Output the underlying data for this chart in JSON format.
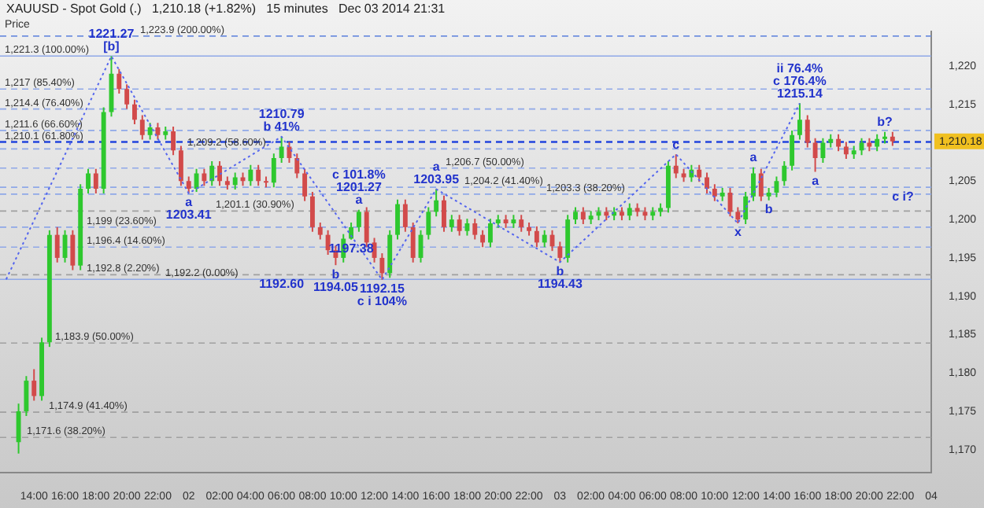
{
  "chart_data": {
    "type": "candlestick",
    "title": "XAUUSD - Spot Gold (.)   1,210.18 (+1.82%)   15 minutes   Dec 03 2014 21:31",
    "ylabel": "Price",
    "x": [
      "2014-12-01T13:00",
      "2014-12-01T13:30",
      "2014-12-01T14:00",
      "2014-12-01T14:30",
      "2014-12-01T15:00",
      "2014-12-01T15:30",
      "2014-12-01T16:00",
      "2014-12-01T16:30",
      "2014-12-01T17:00",
      "2014-12-01T17:30",
      "2014-12-01T18:00",
      "2014-12-01T18:30",
      "2014-12-01T19:00",
      "2014-12-01T19:30",
      "2014-12-01T20:00",
      "2014-12-01T20:30",
      "2014-12-01T21:00",
      "2014-12-01T21:30",
      "2014-12-01T22:00",
      "2014-12-01T22:30",
      "2014-12-01T23:00",
      "2014-12-01T23:30",
      "2014-12-02T00:00",
      "2014-12-02T00:30",
      "2014-12-02T01:00",
      "2014-12-02T01:30",
      "2014-12-02T02:00",
      "2014-12-02T02:30",
      "2014-12-02T03:00",
      "2014-12-02T03:30",
      "2014-12-02T04:00",
      "2014-12-02T04:30",
      "2014-12-02T05:00",
      "2014-12-02T05:30",
      "2014-12-02T06:00",
      "2014-12-02T06:30",
      "2014-12-02T07:00",
      "2014-12-02T07:30",
      "2014-12-02T08:00",
      "2014-12-02T08:30",
      "2014-12-02T09:00",
      "2014-12-02T09:30",
      "2014-12-02T10:00",
      "2014-12-02T10:30",
      "2014-12-02T11:00",
      "2014-12-02T11:30",
      "2014-12-02T12:00",
      "2014-12-02T12:30",
      "2014-12-02T13:00",
      "2014-12-02T13:30",
      "2014-12-02T14:00",
      "2014-12-02T14:30",
      "2014-12-02T15:00",
      "2014-12-02T15:30",
      "2014-12-02T16:00",
      "2014-12-02T16:30",
      "2014-12-02T17:00",
      "2014-12-02T17:30",
      "2014-12-02T18:00",
      "2014-12-02T18:30",
      "2014-12-02T19:00",
      "2014-12-02T19:30",
      "2014-12-02T20:00",
      "2014-12-02T20:30",
      "2014-12-02T21:00",
      "2014-12-02T21:30",
      "2014-12-02T22:00",
      "2014-12-02T22:30",
      "2014-12-02T23:00",
      "2014-12-02T23:30",
      "2014-12-03T00:00",
      "2014-12-03T00:30",
      "2014-12-03T01:00",
      "2014-12-03T01:30",
      "2014-12-03T02:00",
      "2014-12-03T02:30",
      "2014-12-03T03:00",
      "2014-12-03T03:30",
      "2014-12-03T04:00",
      "2014-12-03T04:30",
      "2014-12-03T05:00",
      "2014-12-03T05:30",
      "2014-12-03T06:00",
      "2014-12-03T06:30",
      "2014-12-03T07:00",
      "2014-12-03T07:30",
      "2014-12-03T08:00",
      "2014-12-03T08:30",
      "2014-12-03T09:00",
      "2014-12-03T09:30",
      "2014-12-03T10:00",
      "2014-12-03T10:30",
      "2014-12-03T11:00",
      "2014-12-03T11:30",
      "2014-12-03T12:00",
      "2014-12-03T12:30",
      "2014-12-03T13:00",
      "2014-12-03T13:30",
      "2014-12-03T14:00",
      "2014-12-03T14:30",
      "2014-12-03T15:00",
      "2014-12-03T15:30",
      "2014-12-03T16:00",
      "2014-12-03T16:30",
      "2014-12-03T17:00",
      "2014-12-03T17:30",
      "2014-12-03T18:00",
      "2014-12-03T18:30",
      "2014-12-03T19:00",
      "2014-12-03T19:30",
      "2014-12-03T20:00",
      "2014-12-03T20:30",
      "2014-12-03T21:00",
      "2014-12-03T21:30"
    ],
    "ohlc": [
      [
        1171,
        1176,
        1169.5,
        1175
      ],
      [
        1175,
        1179.6,
        1174.4,
        1179
      ],
      [
        1179,
        1180.5,
        1176.4,
        1177
      ],
      [
        1177,
        1184.6,
        1176.4,
        1184
      ],
      [
        1184,
        1198.6,
        1183.4,
        1198
      ],
      [
        1198,
        1199,
        1194.4,
        1195
      ],
      [
        1195,
        1198.6,
        1194.4,
        1198
      ],
      [
        1198,
        1198.6,
        1193.4,
        1194
      ],
      [
        1194,
        1204.6,
        1193.4,
        1204
      ],
      [
        1204,
        1206.6,
        1203.4,
        1206
      ],
      [
        1206,
        1206.6,
        1203.4,
        1204
      ],
      [
        1204,
        1214.6,
        1203.4,
        1214
      ],
      [
        1214,
        1221.27,
        1213.4,
        1219
      ],
      [
        1219,
        1219.6,
        1216.4,
        1217
      ],
      [
        1217,
        1217.6,
        1214.4,
        1215
      ],
      [
        1215,
        1215.6,
        1212.4,
        1213
      ],
      [
        1213,
        1213.6,
        1210.4,
        1211
      ],
      [
        1211,
        1212.6,
        1210.4,
        1212
      ],
      [
        1212,
        1212.6,
        1210.4,
        1211
      ],
      [
        1211,
        1212.1,
        1210.4,
        1211.5
      ],
      [
        1211.5,
        1212.1,
        1208.4,
        1209
      ],
      [
        1209,
        1209.6,
        1204.4,
        1205
      ],
      [
        1205,
        1205.6,
        1203.41,
        1204
      ],
      [
        1204,
        1206.6,
        1203.6,
        1206
      ],
      [
        1206,
        1206.6,
        1204.4,
        1205
      ],
      [
        1205,
        1207.6,
        1204.4,
        1207
      ],
      [
        1207,
        1207.6,
        1204.4,
        1205
      ],
      [
        1205,
        1205.6,
        1203.9,
        1204.5
      ],
      [
        1204.5,
        1206.1,
        1203.9,
        1205.5
      ],
      [
        1205.5,
        1206.1,
        1204.4,
        1205
      ],
      [
        1205,
        1207.1,
        1204.4,
        1206.5
      ],
      [
        1206.5,
        1207.1,
        1204.4,
        1205
      ],
      [
        1205,
        1205.6,
        1204.2,
        1204.8
      ],
      [
        1204.8,
        1208.6,
        1204.2,
        1208
      ],
      [
        1208,
        1210.79,
        1207.4,
        1209.5
      ],
      [
        1209.5,
        1210.1,
        1207.4,
        1208
      ],
      [
        1208,
        1208.6,
        1205.4,
        1206
      ],
      [
        1206,
        1206.6,
        1202.4,
        1203
      ],
      [
        1203,
        1203.6,
        1198.4,
        1199
      ],
      [
        1199,
        1199.6,
        1197.4,
        1198
      ],
      [
        1198,
        1198.6,
        1195.4,
        1196
      ],
      [
        1196,
        1196.6,
        1194.05,
        1195
      ],
      [
        1195,
        1198.1,
        1194.4,
        1197.5
      ],
      [
        1197.5,
        1199.6,
        1197.38,
        1199
      ],
      [
        1199,
        1201.27,
        1198.4,
        1201
      ],
      [
        1201,
        1201.6,
        1196.4,
        1197
      ],
      [
        1197,
        1197.6,
        1194.4,
        1195
      ],
      [
        1195,
        1195.6,
        1192.15,
        1193
      ],
      [
        1193,
        1198.6,
        1192.4,
        1198
      ],
      [
        1198,
        1202.6,
        1197.4,
        1202
      ],
      [
        1202,
        1202.6,
        1198.4,
        1199
      ],
      [
        1199,
        1199.6,
        1194.4,
        1195
      ],
      [
        1195,
        1198.6,
        1194.4,
        1198
      ],
      [
        1198,
        1201.6,
        1197.4,
        1201
      ],
      [
        1201,
        1203.95,
        1200.4,
        1202.5
      ],
      [
        1202.5,
        1203.1,
        1198.4,
        1199
      ],
      [
        1199,
        1200.6,
        1198.4,
        1200
      ],
      [
        1200,
        1200.6,
        1197.9,
        1198.5
      ],
      [
        1198.5,
        1200.1,
        1197.9,
        1199.5
      ],
      [
        1199.5,
        1200.1,
        1197.4,
        1198
      ],
      [
        1198,
        1198.6,
        1196.4,
        1197
      ],
      [
        1197,
        1200.1,
        1196.4,
        1199.5
      ],
      [
        1199.5,
        1200.6,
        1198.9,
        1200
      ],
      [
        1200,
        1200.6,
        1198.9,
        1199.5
      ],
      [
        1199.5,
        1200.6,
        1198.9,
        1200
      ],
      [
        1200,
        1200.6,
        1198.4,
        1199
      ],
      [
        1199,
        1199.6,
        1197.9,
        1198.5
      ],
      [
        1198.5,
        1199.1,
        1196.4,
        1197
      ],
      [
        1197,
        1198.6,
        1196.4,
        1198
      ],
      [
        1198,
        1198.6,
        1195.9,
        1196.5
      ],
      [
        1196.5,
        1197.1,
        1194.43,
        1195
      ],
      [
        1195,
        1200.6,
        1194.4,
        1200
      ],
      [
        1200,
        1201.6,
        1199.4,
        1201
      ],
      [
        1201,
        1201.6,
        1199.4,
        1200
      ],
      [
        1200,
        1201.1,
        1199.4,
        1200.5
      ],
      [
        1200.5,
        1201.6,
        1199.9,
        1201
      ],
      [
        1201,
        1201.6,
        1199.9,
        1200.5
      ],
      [
        1200.5,
        1201.6,
        1199.9,
        1201
      ],
      [
        1201,
        1201.6,
        1199.9,
        1200.5
      ],
      [
        1200.5,
        1202.1,
        1199.9,
        1201.5
      ],
      [
        1201.5,
        1202.1,
        1200.4,
        1201
      ],
      [
        1201,
        1201.6,
        1199.9,
        1200.5
      ],
      [
        1200.5,
        1201.6,
        1199.9,
        1201
      ],
      [
        1201,
        1202.1,
        1200.4,
        1201.5
      ],
      [
        1201.5,
        1207.6,
        1200.9,
        1207
      ],
      [
        1207,
        1208.5,
        1205.4,
        1206
      ],
      [
        1206,
        1206.6,
        1204.9,
        1205.5
      ],
      [
        1205.5,
        1207.1,
        1204.9,
        1206.5
      ],
      [
        1206.5,
        1207.1,
        1204.9,
        1205.5
      ],
      [
        1205.5,
        1206.1,
        1203.4,
        1204
      ],
      [
        1204,
        1204.6,
        1202.4,
        1203
      ],
      [
        1203,
        1204.1,
        1202.4,
        1203.5
      ],
      [
        1203.5,
        1204.1,
        1200.4,
        1201
      ],
      [
        1201,
        1201.6,
        1199.5,
        1200
      ],
      [
        1200,
        1203.6,
        1199.4,
        1203
      ],
      [
        1203,
        1206.8,
        1202.4,
        1206
      ],
      [
        1206,
        1206.6,
        1202.4,
        1203
      ],
      [
        1203,
        1204.1,
        1202.5,
        1203.5
      ],
      [
        1203.5,
        1205.6,
        1202.9,
        1205
      ],
      [
        1205,
        1207.6,
        1204.4,
        1207
      ],
      [
        1207,
        1211.6,
        1206.4,
        1211
      ],
      [
        1211,
        1215.14,
        1210.4,
        1213
      ],
      [
        1213,
        1213.6,
        1209.4,
        1210
      ],
      [
        1210,
        1210.6,
        1206.2,
        1208
      ],
      [
        1208,
        1210.6,
        1207.4,
        1210
      ],
      [
        1210,
        1211.1,
        1209.4,
        1210.5
      ],
      [
        1210.5,
        1211.1,
        1208.9,
        1209.5
      ],
      [
        1209.5,
        1210.1,
        1207.9,
        1208.5
      ],
      [
        1208.5,
        1209.6,
        1207.9,
        1209
      ],
      [
        1209,
        1210.6,
        1208.4,
        1210
      ],
      [
        1210,
        1210.6,
        1208.9,
        1209.5
      ],
      [
        1209.5,
        1211.1,
        1208.9,
        1210.5
      ],
      [
        1210.5,
        1211.4,
        1209.9,
        1210.8
      ],
      [
        1210.8,
        1211.4,
        1209.6,
        1210.18
      ]
    ],
    "series": [
      {
        "type": "line",
        "color": "#5566ee",
        "line_style": "dotted",
        "marker": "none",
        "x": [
          "2014-12-01T12:12",
          "2014-12-01T19:00",
          "2014-12-02T00:00",
          "2014-12-02T06:00",
          "2014-12-02T12:30",
          "2014-12-02T16:00",
          "2014-12-03T00:00",
          "2014-12-03T07:30",
          "2014-12-03T11:30",
          "2014-12-03T15:30"
        ],
        "values": [
          1192.2,
          1221.27,
          1203.41,
          1210.79,
          1192.15,
          1203.95,
          1194.43,
          1208.5,
          1199.5,
          1215.14
        ]
      }
    ],
    "xlim": [
      "2014-12-01T11:48",
      "2014-12-04T00:00"
    ],
    "ylim": [
      1167,
      1224.5
    ],
    "xticks": [
      {
        "value": "2014-12-01T14:00",
        "label": "14:00"
      },
      {
        "value": "2014-12-01T16:00",
        "label": "16:00"
      },
      {
        "value": "2014-12-01T18:00",
        "label": "18:00"
      },
      {
        "value": "2014-12-01T20:00",
        "label": "20:00"
      },
      {
        "value": "2014-12-01T22:00",
        "label": "22:00"
      },
      {
        "value": "2014-12-02T00:00",
        "label": "02"
      },
      {
        "value": "2014-12-02T02:00",
        "label": "02:00"
      },
      {
        "value": "2014-12-02T04:00",
        "label": "04:00"
      },
      {
        "value": "2014-12-02T06:00",
        "label": "06:00"
      },
      {
        "value": "2014-12-02T08:00",
        "label": "08:00"
      },
      {
        "value": "2014-12-02T10:00",
        "label": "10:00"
      },
      {
        "value": "2014-12-02T12:00",
        "label": "12:00"
      },
      {
        "value": "2014-12-02T14:00",
        "label": "14:00"
      },
      {
        "value": "2014-12-02T16:00",
        "label": "16:00"
      },
      {
        "value": "2014-12-02T18:00",
        "label": "18:00"
      },
      {
        "value": "2014-12-02T20:00",
        "label": "20:00"
      },
      {
        "value": "2014-12-02T22:00",
        "label": "22:00"
      },
      {
        "value": "2014-12-03T00:00",
        "label": "03"
      },
      {
        "value": "2014-12-03T02:00",
        "label": "02:00"
      },
      {
        "value": "2014-12-03T04:00",
        "label": "04:00"
      },
      {
        "value": "2014-12-03T06:00",
        "label": "06:00"
      },
      {
        "value": "2014-12-03T08:00",
        "label": "08:00"
      },
      {
        "value": "2014-12-03T10:00",
        "label": "10:00"
      },
      {
        "value": "2014-12-03T12:00",
        "label": "12:00"
      },
      {
        "value": "2014-12-03T14:00",
        "label": "14:00"
      },
      {
        "value": "2014-12-03T16:00",
        "label": "16:00"
      },
      {
        "value": "2014-12-03T18:00",
        "label": "18:00"
      },
      {
        "value": "2014-12-03T20:00",
        "label": "20:00"
      },
      {
        "value": "2014-12-03T22:00",
        "label": "22:00"
      },
      {
        "value": "2014-12-04T00:00",
        "label": "04"
      }
    ],
    "yticks": [
      {
        "value": 1170,
        "label": "1,170"
      },
      {
        "value": 1175,
        "label": "1,175"
      },
      {
        "value": 1180,
        "label": "1,180"
      },
      {
        "value": 1185,
        "label": "1,185"
      },
      {
        "value": 1190,
        "label": "1,190"
      },
      {
        "value": 1195,
        "label": "1,195"
      },
      {
        "value": 1200,
        "label": "1,200"
      },
      {
        "value": 1205,
        "label": "1,205"
      },
      {
        "value": 1210,
        "label": null
      },
      {
        "value": 1215,
        "label": "1,215"
      },
      {
        "value": 1220,
        "label": "1,220"
      }
    ],
    "ref_lines": [
      {
        "axis": "y",
        "value": 1223.9,
        "label": "1,223.9 (200.00%)",
        "color": "#6f8fe0",
        "line_style": "dashed"
      },
      {
        "axis": "y",
        "value": 1221.3,
        "label": "1,221.3 (100.00%)",
        "color": "#8fa8e8",
        "line_style": "solid"
      },
      {
        "axis": "y",
        "value": 1217,
        "label": "1,217 (85.40%)",
        "color": "#8fa8e8",
        "line_style": "dashed"
      },
      {
        "axis": "y",
        "value": 1214.4,
        "label": "1,214.4 (76.40%)",
        "color": "#8fa8e8",
        "line_style": "dashed"
      },
      {
        "axis": "y",
        "value": 1211.6,
        "label": "1,211.6 (66.60%)",
        "color": "#8fa8e8",
        "line_style": "dashed"
      },
      {
        "axis": "y",
        "value": 1210.1,
        "label": "1,210.1 (61.80%)",
        "color": "#2244dd",
        "line_style": "dashed"
      },
      {
        "axis": "y",
        "value": 1209.2,
        "label": "1,209.2 (58.60%)",
        "color": "#8fa8e8",
        "line_style": "dashed"
      },
      {
        "axis": "y",
        "value": 1206.7,
        "label": "1,206.7 (50.00%)",
        "color": "#8fa8e8",
        "line_style": "dashed"
      },
      {
        "axis": "y",
        "value": 1204.2,
        "label": "1,204.2 (41.40%)",
        "color": "#8fa8e8",
        "line_style": "dashed"
      },
      {
        "axis": "y",
        "value": 1203.3,
        "label": "1,203.3 (38.20%)",
        "color": "#8fa8e8",
        "line_style": "dashed"
      },
      {
        "axis": "y",
        "value": 1201.1,
        "label": "1,201.1 (30.90%)",
        "color": "#a0a0a0",
        "line_style": "dashed"
      },
      {
        "axis": "y",
        "value": 1199,
        "label": "1,199 (23.60%)",
        "color": "#8fa8e8",
        "line_style": "dashed"
      },
      {
        "axis": "y",
        "value": 1196.4,
        "label": "1,196.4 (14.60%)",
        "color": "#8fa8e8",
        "line_style": "dashed"
      },
      {
        "axis": "y",
        "value": 1192.8,
        "label": "1,192.8 (2.20%)",
        "color": "#a0a0a0",
        "line_style": "dashed"
      },
      {
        "axis": "y",
        "value": 1192.2,
        "label": "1,192.2 (0.00%)",
        "color": "#8fa8e8",
        "line_style": "solid"
      },
      {
        "axis": "y",
        "value": 1183.9,
        "label": "1,183.9 (50.00%)",
        "color": "#a0a0a0",
        "line_style": "dashed"
      },
      {
        "axis": "y",
        "value": 1174.9,
        "label": "1,174.9 (41.40%)",
        "color": "#a0a0a0",
        "line_style": "dashed"
      },
      {
        "axis": "y",
        "value": 1171.6,
        "label": "1,171.6 (38.20%)",
        "color": "#a0a0a0",
        "line_style": "dashed"
      }
    ],
    "annotations": [
      {
        "text": "[b]",
        "x": "2014-12-01T19:00",
        "y": 1221.27
      },
      {
        "text": "1221.27",
        "x": "2014-12-01T19:00",
        "y": 1221.27
      },
      {
        "text": "a",
        "x": "2014-12-02T00:00",
        "y": 1203.41
      },
      {
        "text": "1203.41",
        "x": "2014-12-02T00:00",
        "y": 1203.41
      },
      {
        "text": "b 41%",
        "x": "2014-12-02T06:00",
        "y": 1210.79
      },
      {
        "text": "1210.79",
        "x": "2014-12-02T06:00",
        "y": 1210.79
      },
      {
        "text": "1192.60",
        "x": "2014-12-02T06:00",
        "y": 1192.8
      },
      {
        "text": "a",
        "x": "2014-12-02T11:00",
        "y": 1201.27
      },
      {
        "text": "1201.27",
        "x": "2014-12-02T11:00",
        "y": 1201.27
      },
      {
        "text": "c 101.8%",
        "x": "2014-12-02T11:00",
        "y": 1201.27
      },
      {
        "text": "1197.38",
        "x": "2014-12-02T10:30",
        "y": 1197.38
      },
      {
        "text": "b",
        "x": "2014-12-02T09:30",
        "y": 1194.05
      },
      {
        "text": "1194.05",
        "x": "2014-12-02T09:30",
        "y": 1194.05
      },
      {
        "text": "1192.15",
        "x": "2014-12-02T12:30",
        "y": 1192.15
      },
      {
        "text": "c i 104%",
        "x": "2014-12-02T12:30",
        "y": 1192.15
      },
      {
        "text": "1203.95",
        "x": "2014-12-02T16:00",
        "y": 1203.95
      },
      {
        "text": "a",
        "x": "2014-12-02T16:00",
        "y": 1203.95
      },
      {
        "text": "b",
        "x": "2014-12-03T00:00",
        "y": 1194.43
      },
      {
        "text": "1194.43",
        "x": "2014-12-03T00:00",
        "y": 1194.43
      },
      {
        "text": "c",
        "x": "2014-12-03T07:30",
        "y": 1208.5
      },
      {
        "text": "x",
        "x": "2014-12-03T11:30",
        "y": 1199.5
      },
      {
        "text": "a",
        "x": "2014-12-03T12:30",
        "y": 1206.8
      },
      {
        "text": "b",
        "x": "2014-12-03T13:30",
        "y": 1202.5
      },
      {
        "text": "1215.14",
        "x": "2014-12-03T15:30",
        "y": 1215.14
      },
      {
        "text": "c 176.4%",
        "x": "2014-12-03T15:30",
        "y": 1215.14
      },
      {
        "text": "ii 76.4%",
        "x": "2014-12-03T15:30",
        "y": 1215.14
      },
      {
        "text": "a",
        "x": "2014-12-03T16:30",
        "y": 1206.2
      },
      {
        "text": "b?",
        "x": "2014-12-03T21:00",
        "y": 1211.4
      },
      {
        "text": "c i?",
        "x": "2014-12-03T22:10",
        "y": 1204.2
      },
      {
        "text": "1,210.18",
        "y": 1210.18
      }
    ]
  }
}
